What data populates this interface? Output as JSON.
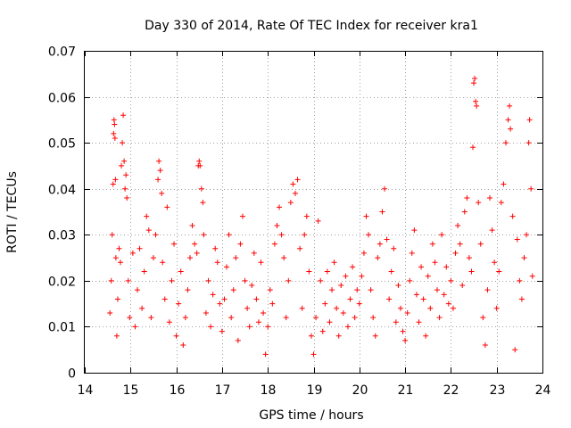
{
  "chart_data": {
    "type": "scatter",
    "title": "Day 330 of 2014, Rate Of TEC Index for receiver kra1",
    "xlabel": "GPS time / hours",
    "ylabel": "ROTI / TECUs",
    "xlim": [
      14,
      24
    ],
    "ylim": [
      0,
      0.07
    ],
    "xticks": [
      "14",
      "15",
      "16",
      "17",
      "18",
      "19",
      "20",
      "21",
      "22",
      "23",
      "24"
    ],
    "yticks": [
      "0",
      "0.01",
      "0.02",
      "0.03",
      "0.04",
      "0.05",
      "0.06",
      "0.07"
    ],
    "grid": true,
    "marker": "+",
    "color": "#ff0000",
    "series": [
      {
        "name": "ROTI",
        "points": [
          [
            14.55,
            0.013
          ],
          [
            14.58,
            0.02
          ],
          [
            14.6,
            0.03
          ],
          [
            14.62,
            0.041
          ],
          [
            14.63,
            0.052
          ],
          [
            14.64,
            0.055
          ],
          [
            14.65,
            0.054
          ],
          [
            14.66,
            0.051
          ],
          [
            14.67,
            0.042
          ],
          [
            14.68,
            0.025
          ],
          [
            14.7,
            0.008
          ],
          [
            14.72,
            0.016
          ],
          [
            14.75,
            0.027
          ],
          [
            14.78,
            0.024
          ],
          [
            14.8,
            0.045
          ],
          [
            14.82,
            0.05
          ],
          [
            14.84,
            0.056
          ],
          [
            14.86,
            0.046
          ],
          [
            14.88,
            0.04
          ],
          [
            14.9,
            0.043
          ],
          [
            14.92,
            0.038
          ],
          [
            14.95,
            0.02
          ],
          [
            14.98,
            0.012
          ],
          [
            15.05,
            0.026
          ],
          [
            15.1,
            0.01
          ],
          [
            15.15,
            0.018
          ],
          [
            15.2,
            0.027
          ],
          [
            15.25,
            0.014
          ],
          [
            15.3,
            0.022
          ],
          [
            15.35,
            0.034
          ],
          [
            15.4,
            0.031
          ],
          [
            15.45,
            0.012
          ],
          [
            15.5,
            0.025
          ],
          [
            15.55,
            0.03
          ],
          [
            15.6,
            0.042
          ],
          [
            15.62,
            0.046
          ],
          [
            15.65,
            0.044
          ],
          [
            15.68,
            0.039
          ],
          [
            15.7,
            0.024
          ],
          [
            15.75,
            0.016
          ],
          [
            15.8,
            0.036
          ],
          [
            15.85,
            0.011
          ],
          [
            15.9,
            0.02
          ],
          [
            15.95,
            0.028
          ],
          [
            16.0,
            0.008
          ],
          [
            16.05,
            0.015
          ],
          [
            16.1,
            0.022
          ],
          [
            16.15,
            0.006
          ],
          [
            16.2,
            0.012
          ],
          [
            16.25,
            0.018
          ],
          [
            16.3,
            0.025
          ],
          [
            16.35,
            0.032
          ],
          [
            16.4,
            0.028
          ],
          [
            16.45,
            0.026
          ],
          [
            16.48,
            0.045
          ],
          [
            16.5,
            0.046
          ],
          [
            16.52,
            0.045
          ],
          [
            16.55,
            0.04
          ],
          [
            16.58,
            0.037
          ],
          [
            16.6,
            0.03
          ],
          [
            16.65,
            0.013
          ],
          [
            16.7,
            0.02
          ],
          [
            16.75,
            0.01
          ],
          [
            16.8,
            0.017
          ],
          [
            16.85,
            0.027
          ],
          [
            16.9,
            0.024
          ],
          [
            16.95,
            0.015
          ],
          [
            17.0,
            0.009
          ],
          [
            17.05,
            0.016
          ],
          [
            17.1,
            0.023
          ],
          [
            17.15,
            0.03
          ],
          [
            17.2,
            0.012
          ],
          [
            17.25,
            0.018
          ],
          [
            17.3,
            0.025
          ],
          [
            17.35,
            0.007
          ],
          [
            17.4,
            0.028
          ],
          [
            17.45,
            0.034
          ],
          [
            17.5,
            0.02
          ],
          [
            17.55,
            0.014
          ],
          [
            17.6,
            0.01
          ],
          [
            17.65,
            0.019
          ],
          [
            17.7,
            0.026
          ],
          [
            17.75,
            0.016
          ],
          [
            17.8,
            0.011
          ],
          [
            17.85,
            0.024
          ],
          [
            17.9,
            0.013
          ],
          [
            17.95,
            0.004
          ],
          [
            18.0,
            0.01
          ],
          [
            18.05,
            0.018
          ],
          [
            18.1,
            0.015
          ],
          [
            18.15,
            0.028
          ],
          [
            18.2,
            0.032
          ],
          [
            18.25,
            0.036
          ],
          [
            18.3,
            0.03
          ],
          [
            18.35,
            0.025
          ],
          [
            18.4,
            0.012
          ],
          [
            18.45,
            0.02
          ],
          [
            18.5,
            0.037
          ],
          [
            18.55,
            0.041
          ],
          [
            18.6,
            0.039
          ],
          [
            18.65,
            0.042
          ],
          [
            18.7,
            0.027
          ],
          [
            18.75,
            0.014
          ],
          [
            18.8,
            0.03
          ],
          [
            18.85,
            0.034
          ],
          [
            18.9,
            0.022
          ],
          [
            18.95,
            0.008
          ],
          [
            19.0,
            0.004
          ],
          [
            19.05,
            0.012
          ],
          [
            19.1,
            0.033
          ],
          [
            19.15,
            0.02
          ],
          [
            19.2,
            0.009
          ],
          [
            19.25,
            0.015
          ],
          [
            19.3,
            0.022
          ],
          [
            19.35,
            0.011
          ],
          [
            19.4,
            0.018
          ],
          [
            19.45,
            0.024
          ],
          [
            19.5,
            0.014
          ],
          [
            19.55,
            0.008
          ],
          [
            19.6,
            0.019
          ],
          [
            19.65,
            0.013
          ],
          [
            19.7,
            0.021
          ],
          [
            19.75,
            0.01
          ],
          [
            19.8,
            0.016
          ],
          [
            19.85,
            0.023
          ],
          [
            19.9,
            0.012
          ],
          [
            19.95,
            0.018
          ],
          [
            20.0,
            0.015
          ],
          [
            20.05,
            0.021
          ],
          [
            20.1,
            0.026
          ],
          [
            20.15,
            0.034
          ],
          [
            20.2,
            0.03
          ],
          [
            20.25,
            0.018
          ],
          [
            20.3,
            0.012
          ],
          [
            20.35,
            0.008
          ],
          [
            20.4,
            0.025
          ],
          [
            20.45,
            0.028
          ],
          [
            20.5,
            0.035
          ],
          [
            20.55,
            0.04
          ],
          [
            20.6,
            0.029
          ],
          [
            20.65,
            0.016
          ],
          [
            20.7,
            0.022
          ],
          [
            20.75,
            0.027
          ],
          [
            20.8,
            0.011
          ],
          [
            20.85,
            0.019
          ],
          [
            20.9,
            0.014
          ],
          [
            20.95,
            0.009
          ],
          [
            21.0,
            0.007
          ],
          [
            21.05,
            0.013
          ],
          [
            21.1,
            0.02
          ],
          [
            21.15,
            0.026
          ],
          [
            21.2,
            0.031
          ],
          [
            21.25,
            0.017
          ],
          [
            21.3,
            0.011
          ],
          [
            21.35,
            0.023
          ],
          [
            21.4,
            0.016
          ],
          [
            21.45,
            0.008
          ],
          [
            21.5,
            0.021
          ],
          [
            21.55,
            0.014
          ],
          [
            21.6,
            0.028
          ],
          [
            21.65,
            0.024
          ],
          [
            21.7,
            0.018
          ],
          [
            21.75,
            0.012
          ],
          [
            21.8,
            0.03
          ],
          [
            21.85,
            0.017
          ],
          [
            21.9,
            0.023
          ],
          [
            21.95,
            0.015
          ],
          [
            22.0,
            0.02
          ],
          [
            22.05,
            0.014
          ],
          [
            22.1,
            0.026
          ],
          [
            22.15,
            0.032
          ],
          [
            22.2,
            0.028
          ],
          [
            22.25,
            0.019
          ],
          [
            22.3,
            0.035
          ],
          [
            22.35,
            0.038
          ],
          [
            22.4,
            0.025
          ],
          [
            22.45,
            0.022
          ],
          [
            22.48,
            0.049
          ],
          [
            22.5,
            0.063
          ],
          [
            22.52,
            0.064
          ],
          [
            22.54,
            0.059
          ],
          [
            22.56,
            0.058
          ],
          [
            22.6,
            0.037
          ],
          [
            22.65,
            0.028
          ],
          [
            22.7,
            0.012
          ],
          [
            22.75,
            0.006
          ],
          [
            22.8,
            0.018
          ],
          [
            22.85,
            0.038
          ],
          [
            22.9,
            0.031
          ],
          [
            22.95,
            0.024
          ],
          [
            23.0,
            0.014
          ],
          [
            23.05,
            0.022
          ],
          [
            23.1,
            0.037
          ],
          [
            23.15,
            0.041
          ],
          [
            23.2,
            0.05
          ],
          [
            23.25,
            0.055
          ],
          [
            23.28,
            0.058
          ],
          [
            23.3,
            0.053
          ],
          [
            23.35,
            0.034
          ],
          [
            23.4,
            0.005
          ],
          [
            23.45,
            0.029
          ],
          [
            23.5,
            0.02
          ],
          [
            23.55,
            0.016
          ],
          [
            23.6,
            0.025
          ],
          [
            23.65,
            0.03
          ],
          [
            23.7,
            0.05
          ],
          [
            23.72,
            0.055
          ],
          [
            23.75,
            0.04
          ],
          [
            23.78,
            0.021
          ]
        ]
      }
    ]
  }
}
